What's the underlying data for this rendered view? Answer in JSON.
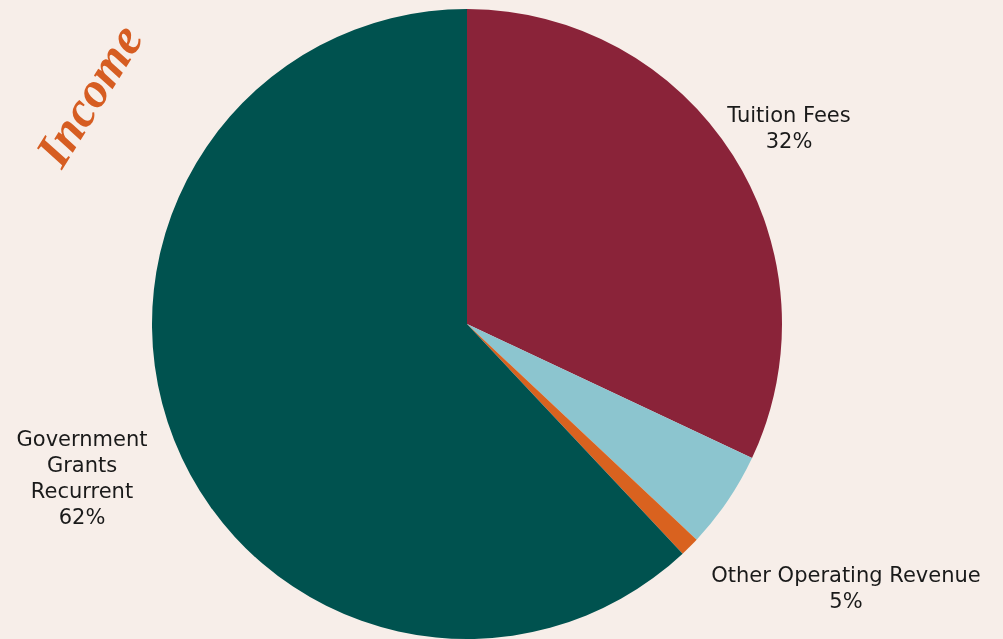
{
  "chart_data": {
    "type": "pie",
    "title": "Income",
    "categories": [
      "Tuition Fees",
      "Other Operating Revenue",
      null,
      "Government Grants Recurrent"
    ],
    "values": [
      32,
      5,
      1,
      62
    ],
    "value_labels": [
      "32%",
      "5%",
      null,
      "62%"
    ],
    "colors": [
      "#8a2339",
      "#8cc5cf",
      "#d9621f",
      "#00524f"
    ],
    "legend": false
  }
}
